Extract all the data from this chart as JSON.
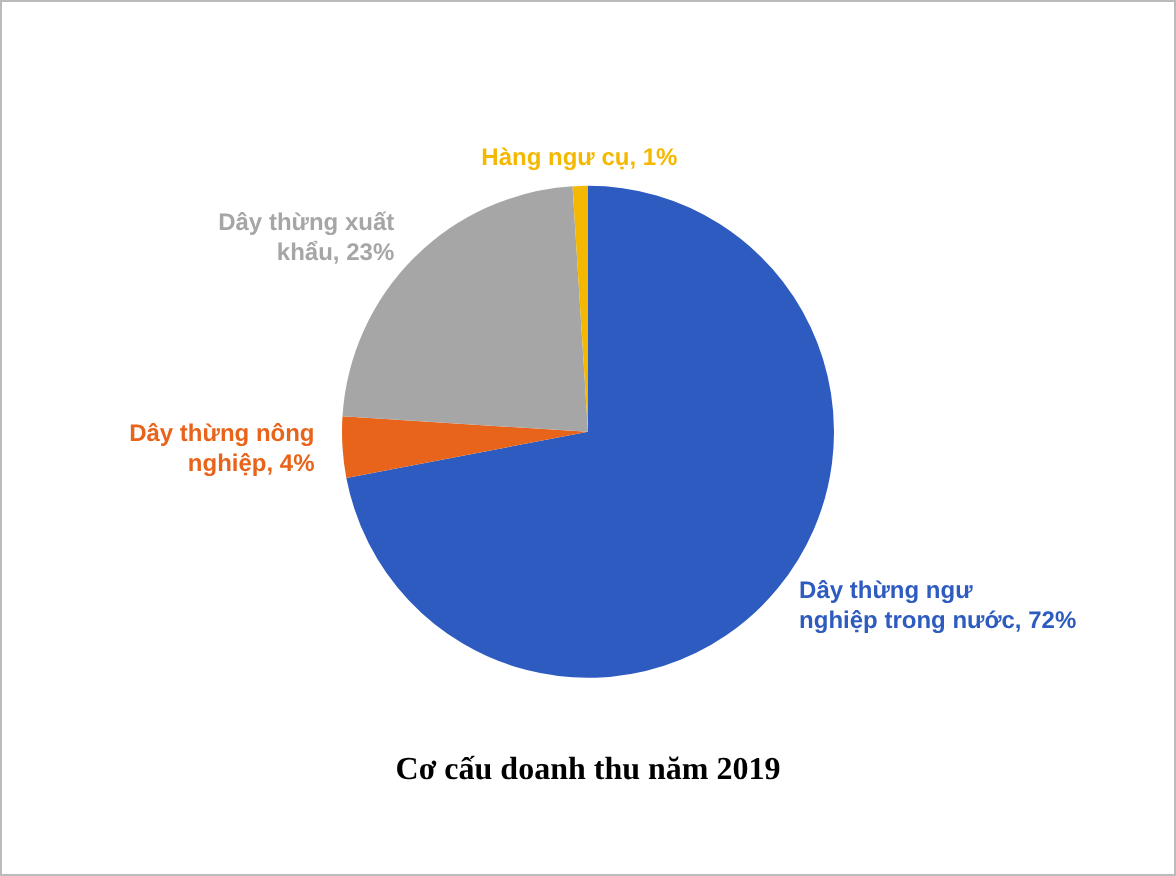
{
  "chart_data": {
    "type": "pie",
    "title": "Cơ cấu doanh thu năm 2019",
    "categories": [
      "Dây thừng ngư nghiệp trong nước",
      "Dây thừng nông nghiệp",
      "Dây thừng xuất khẩu",
      "Hàng ngư cụ"
    ],
    "values": [
      72,
      4,
      23,
      1
    ],
    "value_labels": [
      "72%",
      "4%",
      "23%",
      "1%"
    ],
    "colors": [
      "#2e5bbf",
      "#e8641b",
      "#a6a6a6",
      "#f5b800"
    ],
    "legend": false
  }
}
